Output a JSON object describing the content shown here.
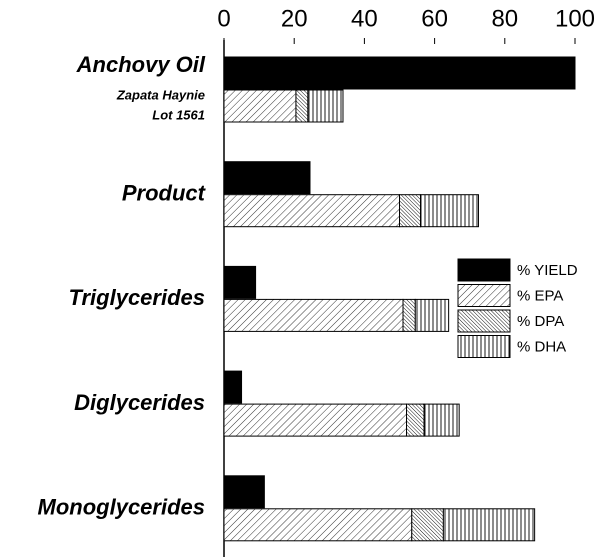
{
  "chart_data": {
    "type": "bar",
    "orientation": "horizontal",
    "categories": [
      "Anchovy Oil",
      "Product",
      "Triglycerides",
      "Diglycerides",
      "Monoglycerides"
    ],
    "annotations": [
      "Zapata Haynie",
      "Lot 1561"
    ],
    "series": [
      {
        "name": "% YIELD",
        "color": "#000000",
        "pattern": "solid",
        "values": [
          100,
          24.5,
          9,
          5,
          11.5
        ]
      },
      {
        "name": "% EPA",
        "color": "#000000",
        "pattern": "diagonal",
        "values": [
          20.5,
          50,
          51,
          52,
          53.5
        ]
      },
      {
        "name": "% DPA",
        "color": "#000000",
        "pattern": "dense-diagonal",
        "values": [
          3.4,
          6,
          3.5,
          5,
          9
        ]
      },
      {
        "name": "% DHA",
        "color": "#000000",
        "pattern": "vertical",
        "values": [
          10,
          16.5,
          9.5,
          10,
          26
        ]
      }
    ],
    "xlim": [
      0,
      100
    ],
    "xticks": [
      0,
      20,
      40,
      60,
      80,
      100
    ],
    "legend": "center right"
  }
}
